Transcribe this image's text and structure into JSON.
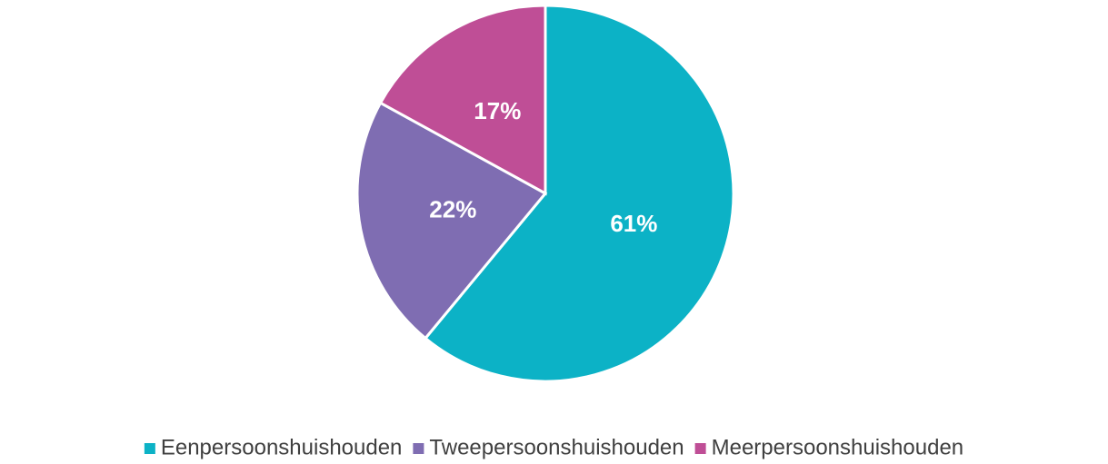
{
  "chart_data": {
    "type": "pie",
    "categories": [
      "Eenpersoonshuishouden",
      "Tweepersoonshuishouden",
      "Meerpersoonshuishouden"
    ],
    "values": [
      61,
      22,
      17
    ],
    "value_labels": [
      "61%",
      "22%",
      "17%"
    ],
    "colors": [
      "#0cb2c6",
      "#7f6db2",
      "#bf4e96"
    ],
    "legend": "bottom"
  }
}
